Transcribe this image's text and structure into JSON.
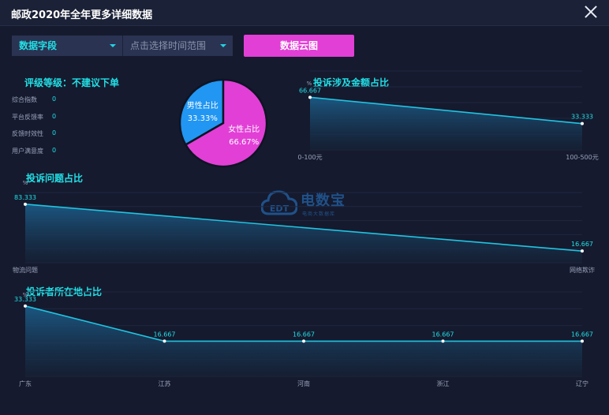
{
  "window": {
    "title": "邮政2020年全年更多详细数据"
  },
  "toolbar": {
    "field_select": "数据字段",
    "time_select_placeholder": "点击选择时间范围",
    "cloud_button": "数据云图"
  },
  "rating": {
    "heading": "评级等级：不建议下单",
    "metrics": [
      {
        "label": "综合指数",
        "value": "0"
      },
      {
        "label": "平台反馈率",
        "value": "0"
      },
      {
        "label": "反馈时效性",
        "value": "0"
      },
      {
        "label": "用户满意度",
        "value": "0"
      }
    ]
  },
  "watermark": {
    "logo_text": "电数宝",
    "sub_text": "电商大数据库",
    "brand_letters": "EDT"
  },
  "colors": {
    "accent": "#22e0e6",
    "pink": "#e23fd6",
    "blue": "#2196f3",
    "line": "#20c4e0"
  },
  "chart_data": [
    {
      "type": "pie",
      "title": "",
      "slices": [
        {
          "label": "男性占比",
          "value": 33.33,
          "display": "33.33%",
          "color": "#2196f3"
        },
        {
          "label": "女性占比",
          "value": 66.67,
          "display": "66.67%",
          "color": "#e23fd6"
        }
      ]
    },
    {
      "type": "area",
      "title": "投诉涉及金额占比",
      "ylabel": "%",
      "categories": [
        "0-100元",
        "100-500元"
      ],
      "values": [
        66.667,
        33.333
      ],
      "labels": [
        "66.667",
        "33.333"
      ],
      "ylim": [
        0,
        100
      ]
    },
    {
      "type": "area",
      "title": "投诉问题占比",
      "ylabel": "%",
      "categories": [
        "物流问题",
        "网络欺诈"
      ],
      "values": [
        83.333,
        16.667
      ],
      "labels": [
        "83.333",
        "16.667"
      ],
      "ylim": [
        0,
        100
      ]
    },
    {
      "type": "area",
      "title": "投诉者所在地占比",
      "ylabel": "%",
      "categories": [
        "广东",
        "江苏",
        "河南",
        "浙江",
        "辽宁"
      ],
      "values": [
        33.333,
        16.667,
        16.667,
        16.667,
        16.667
      ],
      "labels": [
        "33.333",
        "16.667",
        "16.667",
        "16.667",
        "16.667"
      ],
      "ylim": [
        0,
        40
      ]
    }
  ]
}
